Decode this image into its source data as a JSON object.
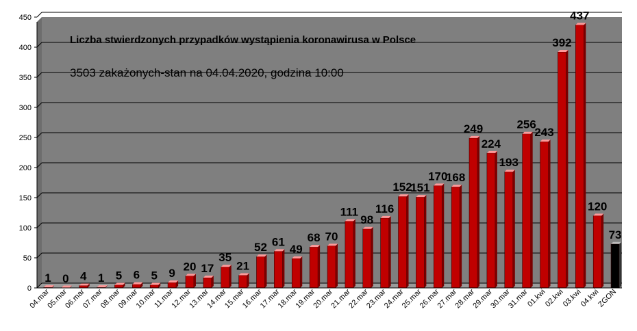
{
  "chart_data": {
    "type": "bar",
    "title": "Liczba stwierdzonych przypadków wystąpienia koronawirusa w Polsce",
    "subtitle": "3503 zakażonych-stan  na 04.04.2020, godzina  10:00",
    "categories": [
      "04.mar",
      "05.mar",
      "06.mar",
      "07.mar",
      "08.mar",
      "09.mar",
      "10.mar",
      "11.mar",
      "12.mar",
      "13.mar",
      "14.mar",
      "15.mar",
      "16.mar",
      "17.mar",
      "18.mar",
      "19.mar",
      "20.mar",
      "21.mar",
      "22.mar",
      "23.mar",
      "24.mar",
      "25.mar",
      "26.mar",
      "27.mar",
      "28.mar",
      "29.mar",
      "30.mar",
      "31.mar",
      "01.kwi",
      "02.kwi",
      "03.kwi",
      "04.kwi",
      "ZGON"
    ],
    "values": [
      1,
      0,
      4,
      1,
      5,
      6,
      5,
      9,
      20,
      17,
      35,
      21,
      52,
      61,
      49,
      68,
      70,
      111,
      98,
      116,
      152,
      151,
      170,
      168,
      249,
      224,
      193,
      256,
      243,
      392,
      437,
      120,
      73
    ],
    "data_labels": [
      "1",
      "0",
      "4",
      "1",
      "5",
      "6",
      "5",
      "9",
      "20",
      "17",
      "35",
      "21",
      "52",
      "61",
      "49",
      "68",
      "70",
      "111",
      "98",
      "116",
      "152",
      "151",
      "170",
      "168",
      "249",
      "224",
      "193",
      "256",
      "243",
      "392",
      "437",
      "120",
      "73"
    ],
    "ylim": [
      0,
      450
    ],
    "yticks": [
      "0",
      "50",
      "100",
      "150",
      "200",
      "250",
      "300",
      "350",
      "400",
      "450"
    ],
    "grid": true,
    "legend": "none",
    "colors": {
      "plot_background": "#7f7f7f",
      "bar": "#c00000",
      "bar_top": "#ff9999",
      "highlight_bar": "#000000",
      "gridline": "#000000"
    },
    "highlight_category": "ZGON"
  }
}
